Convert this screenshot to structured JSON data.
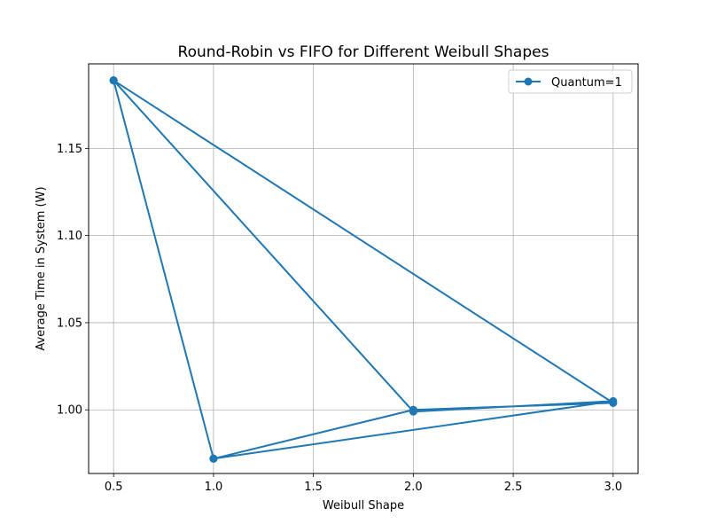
{
  "chart_data": {
    "type": "line",
    "title": "Round-Robin vs FIFO for Different Weibull Shapes",
    "xlabel": "Weibull Shape",
    "ylabel": "Average Time in System (W)",
    "xlim": [
      0.375,
      3.125
    ],
    "ylim": [
      0.9635,
      1.1985
    ],
    "xticks": [
      0.5,
      1.0,
      1.5,
      2.0,
      2.5,
      3.0
    ],
    "xtick_labels": [
      "0.5",
      "1.0",
      "1.5",
      "2.0",
      "2.5",
      "3.0"
    ],
    "yticks": [
      1.0,
      1.05,
      1.1,
      1.15
    ],
    "ytick_labels": [
      "1.00",
      "1.05",
      "1.10",
      "1.15"
    ],
    "grid": true,
    "legend_position": "top-right",
    "series": [
      {
        "name": "Quantum=1",
        "color": "#1f77b4",
        "marker": "circle",
        "x": [
          0.5,
          1.0,
          2.0,
          3.0,
          0.5,
          1.0,
          2.0,
          3.0,
          0.5,
          1.0,
          3.0,
          2.0,
          0.5
        ],
        "y": [
          1.189,
          0.972,
          1.0,
          1.004,
          1.189,
          0.972,
          1.0,
          1.004,
          1.189,
          0.972,
          1.005,
          0.999,
          1.189
        ]
      }
    ]
  }
}
